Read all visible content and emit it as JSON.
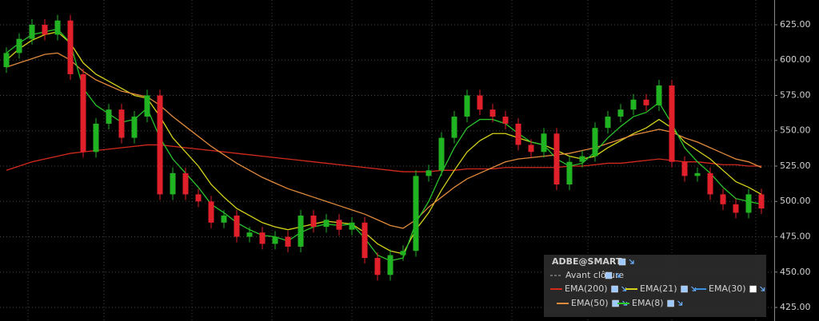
{
  "chart_data": {
    "type": "candlestick",
    "title": "ADBE@SMART",
    "note": "Avant clôture",
    "up_color": "#22b322",
    "down_color": "#e0212b",
    "open": [
      595,
      605,
      615,
      625,
      618,
      628,
      590,
      535,
      555,
      565,
      545,
      560,
      575,
      505,
      520,
      505,
      500,
      485,
      490,
      475,
      478,
      470,
      475,
      468,
      490,
      482,
      487,
      480,
      485,
      460,
      448,
      462,
      465,
      518,
      522,
      545,
      560,
      575,
      565,
      560,
      555,
      540,
      535,
      548,
      512,
      528,
      532,
      552,
      560,
      565,
      572,
      568,
      582,
      528,
      518,
      520,
      505,
      498,
      492,
      505
    ],
    "high": [
      609,
      619,
      629,
      629,
      632,
      632,
      594,
      559,
      569,
      569,
      564,
      579,
      579,
      524,
      524,
      509,
      504,
      494,
      494,
      482,
      482,
      479,
      479,
      494,
      494,
      491,
      491,
      489,
      489,
      464,
      466,
      469,
      522,
      526,
      549,
      564,
      579,
      579,
      569,
      564,
      559,
      544,
      552,
      552,
      532,
      536,
      556,
      564,
      569,
      576,
      576,
      586,
      586,
      532,
      524,
      524,
      509,
      502,
      509,
      509
    ],
    "low": [
      591,
      601,
      611,
      614,
      614,
      586,
      531,
      531,
      551,
      541,
      541,
      556,
      501,
      501,
      501,
      496,
      481,
      481,
      471,
      471,
      466,
      466,
      464,
      464,
      478,
      478,
      476,
      476,
      456,
      444,
      444,
      458,
      461,
      514,
      518,
      541,
      556,
      561,
      556,
      551,
      536,
      531,
      531,
      508,
      508,
      524,
      528,
      548,
      556,
      561,
      564,
      564,
      524,
      514,
      514,
      501,
      494,
      488,
      488,
      491
    ],
    "close": [
      605,
      615,
      625,
      618,
      628,
      590,
      535,
      555,
      565,
      545,
      560,
      575,
      505,
      520,
      505,
      500,
      485,
      490,
      475,
      478,
      470,
      475,
      468,
      490,
      482,
      487,
      480,
      485,
      460,
      448,
      462,
      465,
      518,
      522,
      545,
      560,
      575,
      565,
      560,
      555,
      540,
      535,
      548,
      512,
      528,
      532,
      552,
      560,
      565,
      572,
      568,
      582,
      528,
      518,
      520,
      505,
      498,
      492,
      505,
      495
    ],
    "series": [
      {
        "name": "EMA(200)",
        "color": "#d42a1e",
        "visible": true,
        "values": [
          522,
          525,
          528,
          530,
          532,
          534,
          535,
          536,
          537,
          538,
          539,
          540,
          540,
          539,
          538,
          537,
          536,
          535,
          534,
          533,
          532,
          531,
          530,
          529,
          528,
          527,
          526,
          525,
          524,
          523,
          522,
          521,
          521,
          521,
          522,
          522,
          523,
          523,
          523,
          524,
          524,
          524,
          524,
          524,
          525,
          525,
          526,
          527,
          527,
          528,
          529,
          530,
          529,
          528,
          528,
          527,
          526,
          526,
          525,
          525
        ]
      },
      {
        "name": "EMA(21)",
        "color": "#d6d21c",
        "visible": true,
        "values": [
          600,
          608,
          614,
          618,
          620,
          612,
          598,
          590,
          585,
          580,
          575,
          573,
          560,
          545,
          535,
          525,
          512,
          503,
          495,
          490,
          485,
          482,
          480,
          482,
          484,
          486,
          485,
          484,
          478,
          470,
          465,
          463,
          480,
          492,
          508,
          522,
          535,
          543,
          548,
          548,
          545,
          542,
          540,
          536,
          532,
          530,
          532,
          538,
          543,
          548,
          552,
          558,
          552,
          542,
          536,
          530,
          522,
          514,
          510,
          505
        ]
      },
      {
        "name": "EMA(30)",
        "color": "#3a8fe0",
        "visible": false
      },
      {
        "name": "EMA(50)",
        "color": "#e08a3c",
        "visible": true,
        "values": [
          595,
          598,
          601,
          604,
          605,
          600,
          592,
          586,
          582,
          578,
          576,
          574,
          568,
          560,
          553,
          546,
          539,
          533,
          527,
          522,
          517,
          513,
          509,
          506,
          503,
          500,
          497,
          494,
          491,
          487,
          483,
          481,
          487,
          496,
          503,
          510,
          516,
          520,
          524,
          528,
          530,
          531,
          532,
          533,
          534,
          536,
          538,
          541,
          544,
          547,
          549,
          551,
          549,
          545,
          542,
          538,
          534,
          530,
          528,
          524
        ]
      },
      {
        "name": "EMA(8)",
        "color": "#2bc42b",
        "visible": true,
        "values": [
          605,
          612,
          618,
          620,
          622,
          612,
          580,
          568,
          562,
          556,
          558,
          566,
          545,
          530,
          520,
          510,
          498,
          492,
          485,
          480,
          476,
          475,
          472,
          478,
          482,
          484,
          483,
          484,
          474,
          462,
          458,
          460,
          485,
          500,
          520,
          538,
          552,
          558,
          558,
          555,
          548,
          542,
          540,
          530,
          525,
          527,
          535,
          545,
          553,
          560,
          563,
          570,
          555,
          538,
          528,
          520,
          510,
          502,
          500,
          498
        ]
      }
    ],
    "ylim": [
      415.4,
      642.5
    ],
    "yticks": [
      {
        "value": 425,
        "label": "425.00"
      },
      {
        "value": 450,
        "label": "450.00"
      },
      {
        "value": 475,
        "label": "475.00"
      },
      {
        "value": 500,
        "label": "500.00"
      },
      {
        "value": 525,
        "label": "525.00"
      },
      {
        "value": 550,
        "label": "550.00"
      },
      {
        "value": 575,
        "label": "575.00"
      },
      {
        "value": 600,
        "label": "600.00"
      },
      {
        "value": 625,
        "label": "625.00"
      }
    ],
    "grid": true
  }
}
